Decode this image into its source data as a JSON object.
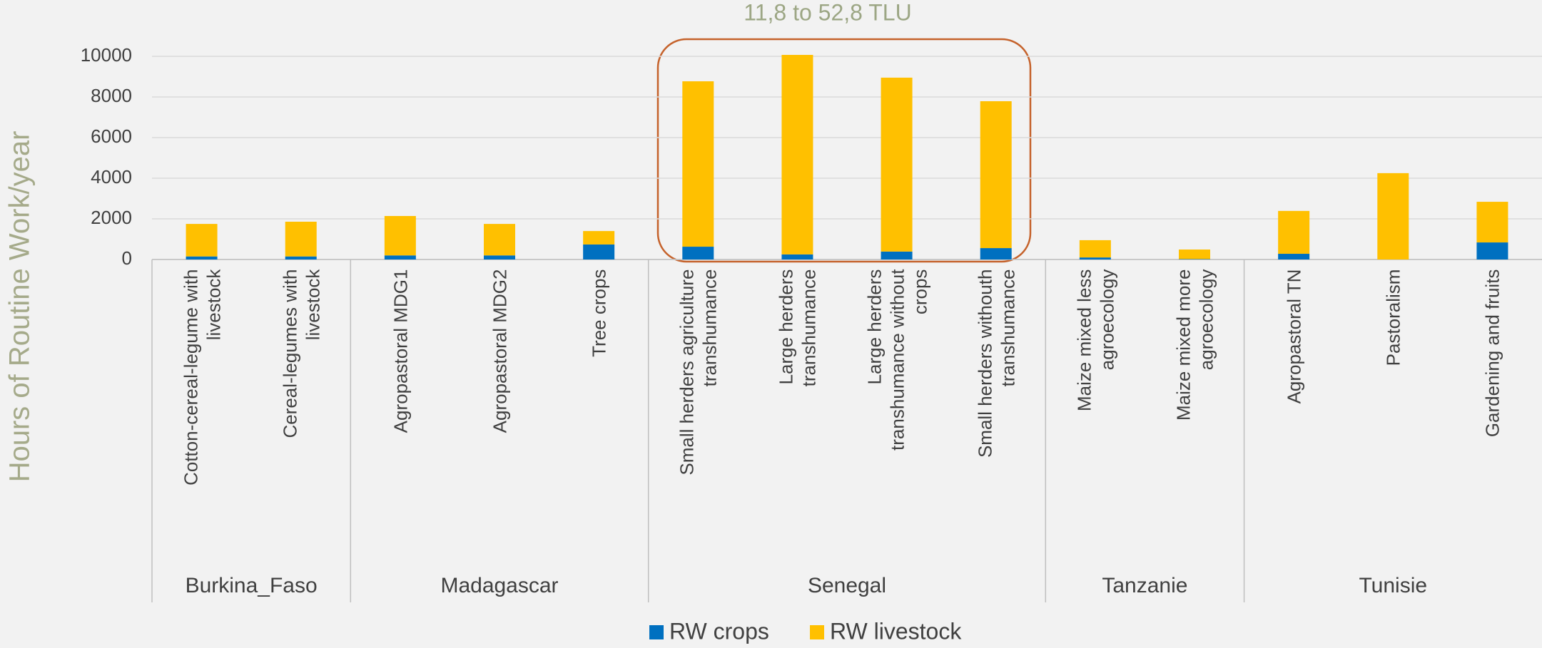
{
  "chart_data": {
    "type": "stacked_bar",
    "annotation": "11,8 to 52,8 TLU",
    "y_label": "Hours of Routine Work/year",
    "groups": [
      {
        "name": "Burkina_Faso",
        "categories": [
          "Cotton-cereal-legume with livestock",
          "Cereal-legumes with livestock"
        ]
      },
      {
        "name": "Madagascar",
        "categories": [
          "Agropastoral MDG1",
          "Agropastoral MDG2",
          "Tree crops"
        ]
      },
      {
        "name": "Senegal",
        "categories": [
          "Small herders agriculture transhumance",
          "Large herders transhumance",
          "Large herders transhumance without crops",
          "Small herders withouth transhumance"
        ]
      },
      {
        "name": "Tanzanie",
        "categories": [
          "Maize mixed less agroecology",
          "Maize mixed more agroecology"
        ]
      },
      {
        "name": "Tunisie",
        "categories": [
          "Agropastoral TN",
          "Pastoralism",
          "Gardening and fruits"
        ]
      }
    ],
    "series": [
      {
        "name": "RW crops",
        "color": "#0070c0",
        "values": [
          150,
          150,
          200,
          200,
          740,
          630,
          250,
          390,
          560,
          100,
          20,
          280,
          0,
          840
        ]
      },
      {
        "name": "RW livestock",
        "color": "#ffc000",
        "values": [
          1600,
          1710,
          1940,
          1550,
          660,
          8140,
          9820,
          8560,
          7230,
          850,
          470,
          2110,
          4250,
          2000
        ]
      }
    ],
    "ylim": [
      0,
      10000
    ],
    "yticks": [
      0,
      2000,
      4000,
      6000,
      8000,
      10000
    ],
    "grid": true,
    "legend": "bottom"
  }
}
